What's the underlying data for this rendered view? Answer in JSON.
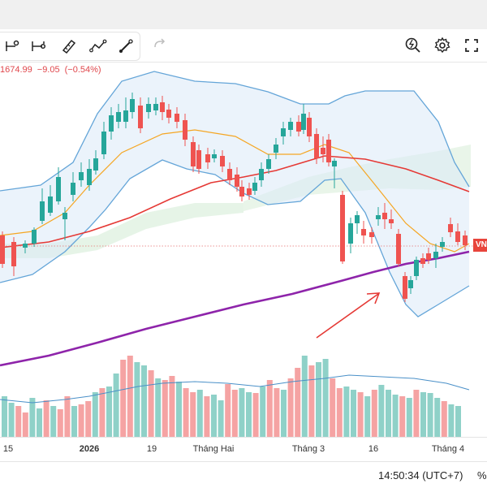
{
  "toolbar": {
    "tools": [
      {
        "icon": "node-line-icon"
      },
      {
        "icon": "range-measure-icon"
      },
      {
        "icon": "ruler-icon"
      },
      {
        "icon": "path-icon"
      },
      {
        "icon": "pencil-icon"
      }
    ],
    "redo_icon": "redo-icon",
    "right_tools": [
      "screenshot-zoom-icon",
      "gear-icon",
      "fullscreen-icon"
    ]
  },
  "legend": {
    "close_value": "1674.99",
    "change": "−9.05",
    "change_pct": "(−0.54%)"
  },
  "price_tag": {
    "label": "VN"
  },
  "chart_data": {
    "type": "candlestick",
    "x_labels": [
      "15",
      "2026",
      "19",
      "Tháng Hai",
      "Tháng 3",
      "16",
      "Tháng 4"
    ],
    "colors": {
      "up": "#26a69a",
      "down": "#ef5350",
      "ma_fast": "#f5a623",
      "ma_mid": "#e53935",
      "ma_long": "#8e24aa",
      "bollinger": "#64a5d8",
      "cloud": "#c8e6c9",
      "annotation_arrow": "#e53935"
    },
    "overlays": [
      "Bollinger bands",
      "fast MA",
      "mid MA",
      "long MA",
      "Ichimoku cloud",
      "volume"
    ]
  },
  "bottom": {
    "clock": "14:50:34 (UTC+7)",
    "percent_toggle": "%"
  }
}
